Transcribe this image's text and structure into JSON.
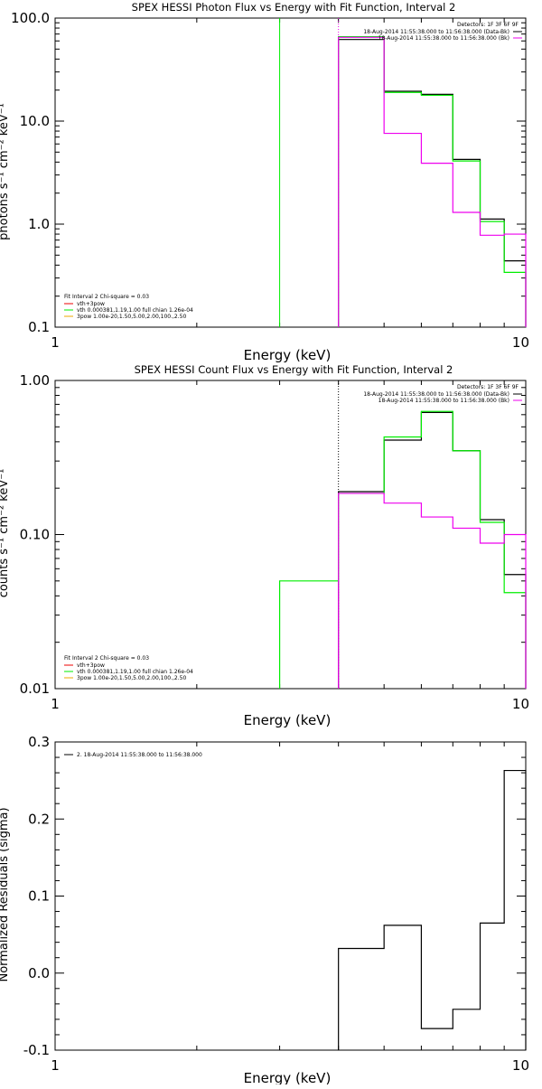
{
  "colors": {
    "background": "#ffffff",
    "axis": "#000000",
    "total": "#000000",
    "vth": "#00ee00",
    "bkg": "#ee00ee",
    "line_vth_3pow": "#ee0000",
    "line_3pow": "#eeaa00"
  },
  "chart_data": [
    {
      "type": "line",
      "step": true,
      "title": "SPEX HESSI Photon Flux vs Energy with Fit Function, Interval 2",
      "xlabel": "Energy (keV)",
      "ylabel": "photons s⁻¹ cm⁻² keV⁻¹",
      "xscale": "log",
      "yscale": "log",
      "xlim": [
        1,
        10
      ],
      "ylim": [
        0.1,
        100
      ],
      "xticks": [
        "1",
        "10"
      ],
      "yticks": [
        {
          "v": 100,
          "t": "100.0"
        },
        {
          "v": 10,
          "t": "10.0"
        },
        {
          "v": 1,
          "t": "1.0"
        },
        {
          "v": 0.1,
          "t": "0.1"
        }
      ],
      "vlines": [
        {
          "x": 3,
          "color": "vth",
          "dash": false
        },
        {
          "x": 4,
          "color": "bkg",
          "dash": true
        }
      ],
      "legend_right": {
        "header": "Detectors: 1F 3F 6F 9F",
        "entries": [
          {
            "text": "18-Aug-2014 11:55:38.000 to 11:56:38.000 (Data-Bk)",
            "color": "total"
          },
          {
            "text": "18-Aug-2014 11:55:38.000 to 11:56:38.000 (Bk)",
            "color": "bkg"
          }
        ]
      },
      "legend_left": {
        "header": "Fit Interval  2   Chi-square = 0.03",
        "entries": [
          {
            "text": "vth+3pow",
            "color": "line_vth_3pow"
          },
          {
            "text": "vth 0.000381,1.19,1.00  full chian 1.26e-04",
            "color": "vth"
          },
          {
            "text": "3pow 1.00e-20,1.50,5.00,2.00,100.,2.50",
            "color": "line_3pow"
          }
        ]
      },
      "series": [
        {
          "name": "Data-Bk",
          "color": "total",
          "edges": [
            4,
            5,
            6,
            7,
            8,
            9,
            10
          ],
          "values": [
            62,
            19.5,
            18.2,
            4.25,
            1.12,
            0.44
          ]
        },
        {
          "name": "vth",
          "color": "vth",
          "edges": [
            4,
            5,
            6,
            7,
            8,
            9,
            10
          ],
          "values": [
            66,
            19,
            17.8,
            4.1,
            1.06,
            0.34
          ]
        },
        {
          "name": "Bk",
          "color": "bkg",
          "edges": [
            4,
            5,
            6,
            7,
            8,
            9,
            10
          ],
          "values": [
            65,
            7.6,
            3.9,
            1.3,
            0.78,
            0.8
          ]
        }
      ]
    },
    {
      "type": "line",
      "step": true,
      "title": "SPEX HESSI Count Flux vs Energy with Fit Function, Interval 2",
      "xlabel": "Energy (keV)",
      "ylabel": "counts s⁻¹ cm⁻² keV⁻¹",
      "xscale": "log",
      "yscale": "log",
      "xlim": [
        1,
        10
      ],
      "ylim": [
        0.01,
        1
      ],
      "xticks": [
        "1",
        "10"
      ],
      "yticks": [
        {
          "v": 1,
          "t": "1.00"
        },
        {
          "v": 0.1,
          "t": "0.10"
        },
        {
          "v": 0.01,
          "t": "0.01"
        }
      ],
      "vlines": [
        {
          "x": 4,
          "color": "total",
          "dash": true
        }
      ],
      "legend_right": {
        "header": "Detectors: 1F 3F 6F 9F",
        "entries": [
          {
            "text": "18-Aug-2014 11:55:38.000 to 11:56:38.000 (Data-Bk)",
            "color": "total"
          },
          {
            "text": "18-Aug-2014 11:55:38.000 to 11:56:38.000 (Bk)",
            "color": "bkg"
          }
        ]
      },
      "legend_left": {
        "header": "Fit Interval  2   Chi-square = 0.03",
        "entries": [
          {
            "text": "vth+3pow",
            "color": "line_vth_3pow"
          },
          {
            "text": "vth 0.000381,1.19,1.00  full chian 1.26e-04",
            "color": "vth"
          },
          {
            "text": "3pow 1.00e-20,1.50,5.00,2.00,100.,2.50",
            "color": "line_3pow"
          }
        ]
      },
      "series": [
        {
          "name": "Data-Bk",
          "color": "total",
          "edges": [
            4,
            5,
            6,
            7,
            8,
            9,
            10
          ],
          "values": [
            0.19,
            0.41,
            0.62,
            0.35,
            0.125,
            0.055
          ]
        },
        {
          "name": "vth",
          "color": "vth",
          "edges": [
            3,
            4,
            5,
            6,
            7,
            8,
            9,
            10
          ],
          "values": [
            0.05,
            0.185,
            0.43,
            0.63,
            0.35,
            0.12,
            0.042
          ]
        },
        {
          "name": "Bk",
          "color": "bkg",
          "edges": [
            4,
            5,
            6,
            7,
            8,
            9,
            10
          ],
          "values": [
            0.185,
            0.16,
            0.13,
            0.11,
            0.088,
            0.1
          ]
        }
      ]
    },
    {
      "type": "line",
      "step": true,
      "title": "",
      "xlabel": "Energy (keV)",
      "ylabel": "Normalized Residuals (sigma)",
      "xscale": "log",
      "yscale": "linear",
      "xlim": [
        1,
        10
      ],
      "ylim": [
        -0.1,
        0.3
      ],
      "xticks": [
        "1",
        "10"
      ],
      "yticks": [
        {
          "v": 0.3,
          "t": "0.3"
        },
        {
          "v": 0.2,
          "t": "0.2"
        },
        {
          "v": 0.1,
          "t": "0.1"
        },
        {
          "v": 0.0,
          "t": "0.0"
        },
        {
          "v": -0.1,
          "t": "-0.1"
        }
      ],
      "vlines": [],
      "legend_left_top": {
        "entries": [
          {
            "text": "2. 18-Aug-2014 11:55:38.000 to 11:56:38.000",
            "color": "total"
          }
        ]
      },
      "series": [
        {
          "name": "residuals",
          "color": "total",
          "edges": [
            4,
            5,
            6,
            7,
            8,
            9,
            10
          ],
          "values": [
            0.032,
            0.062,
            -0.072,
            -0.047,
            0.065,
            0.263
          ]
        }
      ]
    }
  ]
}
